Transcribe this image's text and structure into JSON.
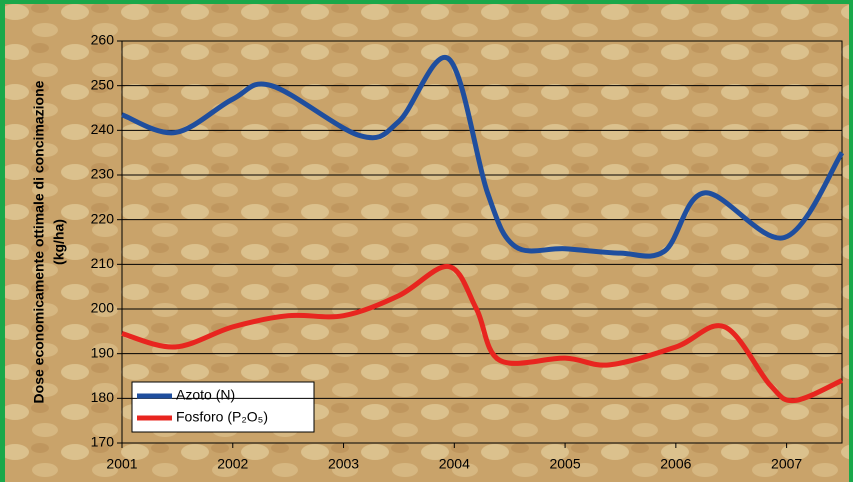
{
  "chart_data": {
    "type": "line",
    "y_label": [
      "Dose economicamente ottimale di concimazione",
      "(kg/ha)"
    ],
    "xlim": [
      2001,
      2007.5
    ],
    "xticks": [
      2001,
      2002,
      2003,
      2004,
      2005,
      2006,
      2007
    ],
    "ylim": [
      170,
      260
    ],
    "yticks": [
      170,
      180,
      190,
      200,
      210,
      220,
      230,
      240,
      250,
      260
    ],
    "grid": true,
    "legend": "bottom-left",
    "series": [
      {
        "name": "Azoto (N)",
        "color": "#1f4e9e",
        "x": [
          2001,
          2001.48,
          2002,
          2002.35,
          2003.15,
          2003.5,
          2003.95,
          2004.3,
          2004.55,
          2005,
          2005.5,
          2005.9,
          2006.26,
          2006.98,
          2007.5
        ],
        "values": [
          243.5,
          239.5,
          247,
          250,
          238.8,
          242,
          256,
          226,
          214,
          213.5,
          212.5,
          213,
          226,
          216,
          235
        ]
      },
      {
        "name": "Fosforo (P₂O₅)",
        "color": "#e8251f",
        "x": [
          2001,
          2001.48,
          2002,
          2002.5,
          2003,
          2003.5,
          2003.95,
          2004.2,
          2004.41,
          2005,
          2005.4,
          2006,
          2006.44,
          2006.85,
          2007.07,
          2007.5
        ],
        "values": [
          194.5,
          191.5,
          196,
          198.5,
          198.5,
          203,
          209.5,
          200,
          188.5,
          189,
          187.5,
          191.5,
          196,
          183,
          179.5,
          184
        ]
      }
    ]
  }
}
